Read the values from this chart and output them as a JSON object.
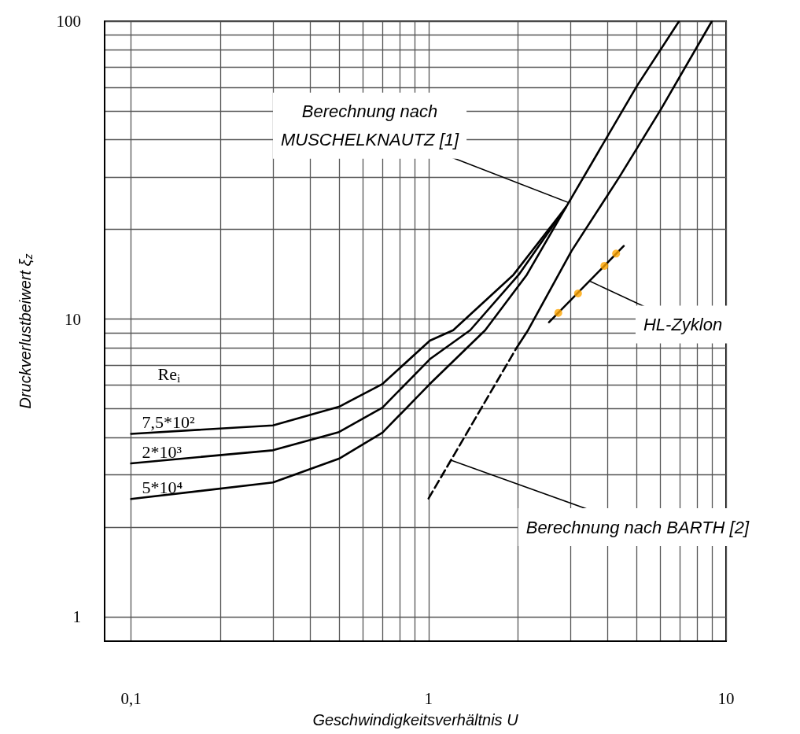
{
  "chart_data": {
    "type": "line",
    "xlabel": "Geschwindigkeitsverhältnis U",
    "ylabel": "Druckverlustbeiwert ξ$_{z}$",
    "legend_title": "Re$_{i}$",
    "log": "xy",
    "grid": true,
    "legend": false,
    "marker": "none",
    "line_style": "solid",
    "xlim": [
      0.0815,
      10
    ],
    "ylim": [
      0.83,
      100
    ],
    "xticks": [
      {
        "value": 0.1,
        "label": "0,1"
      },
      {
        "value": 0.2,
        "label": null
      },
      {
        "value": 0.3,
        "label": null
      },
      {
        "value": 0.4,
        "label": null
      },
      {
        "value": 0.5,
        "label": null
      },
      {
        "value": 0.6,
        "label": null
      },
      {
        "value": 0.7,
        "label": null
      },
      {
        "value": 0.8,
        "label": null
      },
      {
        "value": 0.9,
        "label": null
      },
      1,
      {
        "value": 2,
        "label": null
      },
      {
        "value": 3,
        "label": null
      },
      {
        "value": 4,
        "label": null
      },
      {
        "value": 5,
        "label": null
      },
      {
        "value": 6,
        "label": null
      },
      {
        "value": 7,
        "label": null
      },
      {
        "value": 8,
        "label": null
      },
      {
        "value": 9,
        "label": null
      },
      10
    ],
    "yticks": [
      1,
      {
        "value": 2,
        "label": null
      },
      {
        "value": 3,
        "label": null
      },
      {
        "value": 4,
        "label": null
      },
      {
        "value": 5,
        "label": null
      },
      {
        "value": 6,
        "label": null
      },
      {
        "value": 7,
        "label": null
      },
      {
        "value": 8,
        "label": null
      },
      {
        "value": 9,
        "label": null
      },
      10,
      {
        "value": 20,
        "label": null
      },
      {
        "value": 30,
        "label": null
      },
      {
        "value": 40,
        "label": null
      },
      {
        "value": 50,
        "label": null
      },
      {
        "value": 60,
        "label": null
      },
      {
        "value": 70,
        "label": null
      },
      {
        "value": 80,
        "label": null
      },
      {
        "value": 90,
        "label": null
      },
      100
    ],
    "series": [
      {
        "name": "7,5*10²",
        "color": "#000000",
        "x": [
          0.1,
          0.3,
          0.5,
          0.7,
          1.01,
          1.21,
          1.93,
          2.9,
          5.02,
          6.95
        ],
        "values": [
          4.12,
          4.4,
          5.08,
          6.06,
          8.47,
          9.18,
          14.1,
          23.8,
          60.7,
          100
        ]
      },
      {
        "name": "2*10³",
        "color": "#000000",
        "x": [
          0.1,
          0.3,
          0.5,
          0.7,
          1.01,
          1.38,
          2.01,
          2.9
        ],
        "values": [
          3.28,
          3.63,
          4.18,
          5.05,
          7.34,
          9.18,
          14.1,
          23.8
        ]
      },
      {
        "name": "5*10⁴",
        "color": "#000000",
        "x": [
          0.1,
          0.3,
          0.5,
          0.7,
          1.01,
          1.55,
          2.14,
          2.9
        ],
        "values": [
          2.49,
          2.83,
          3.4,
          4.16,
          6.06,
          9.18,
          14.1,
          23.8
        ]
      },
      {
        "color": "#000000",
        "x": [
          1.97,
          2.16,
          3.02,
          4.36,
          6.03,
          8.96
        ],
        "values": [
          7.97,
          9.18,
          16.9,
          29.8,
          50.5,
          100
        ]
      },
      {
        "color": "#000000",
        "line_style": "dashed",
        "x": [
          1.0,
          1.97
        ],
        "values": [
          2.5,
          7.97
        ]
      },
      {
        "color": "#000000",
        "x": [
          2.54,
          4.53
        ],
        "values": [
          9.76,
          17.6
        ]
      },
      {
        "type": "scatter",
        "marker": "circle",
        "color": "#ffa500",
        "x": [
          2.73,
          3.18,
          3.9,
          4.27
        ],
        "values": [
          10.5,
          12.2,
          15.1,
          16.6
        ]
      }
    ],
    "annotations": [
      {
        "text": "Berechnung nach\nMUSCHELKNAUTZ [1]",
        "x": 2.96,
        "y": 24.6
      },
      {
        "text": "HL-Zyklon",
        "x": 3.49,
        "y": 13.4
      },
      {
        "text": "Berechnung nach BARTH [2]",
        "x": 1.19,
        "y": 3.36
      }
    ]
  }
}
